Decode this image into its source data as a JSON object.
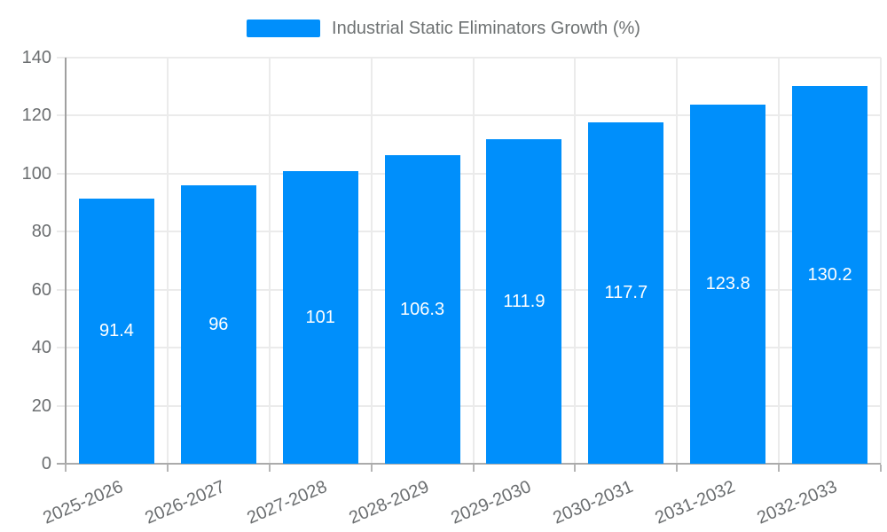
{
  "chart_data": {
    "type": "bar",
    "title": "Industrial Static Eliminators Growth (%)",
    "categories": [
      "2025-2026",
      "2026-2027",
      "2027-2028",
      "2028-2029",
      "2029-2030",
      "2030-2031",
      "2031-2032",
      "2032-2033"
    ],
    "values": [
      91.4,
      96,
      101,
      106.3,
      111.9,
      117.7,
      123.8,
      130.2
    ],
    "value_labels": [
      "91.4",
      "96",
      "101",
      "106.3",
      "111.9",
      "117.7",
      "123.8",
      "130.2"
    ],
    "xlabel": "",
    "ylabel": "",
    "ylim": [
      0,
      140
    ],
    "yticks": [
      0,
      20,
      40,
      60,
      80,
      100,
      120,
      140
    ],
    "grid": true,
    "legend_position": "top-center",
    "colors": {
      "bar": "#008FFB",
      "value_label": "#ffffff",
      "grid": "#ebebeb",
      "y_axis_line": "#a0a0a0",
      "x_axis_line": "#ababab",
      "tick_mark": "#b5b5b5",
      "axis_text": "#6b6e70",
      "legend_text": "#6d7172",
      "background": "#ffffff"
    }
  }
}
